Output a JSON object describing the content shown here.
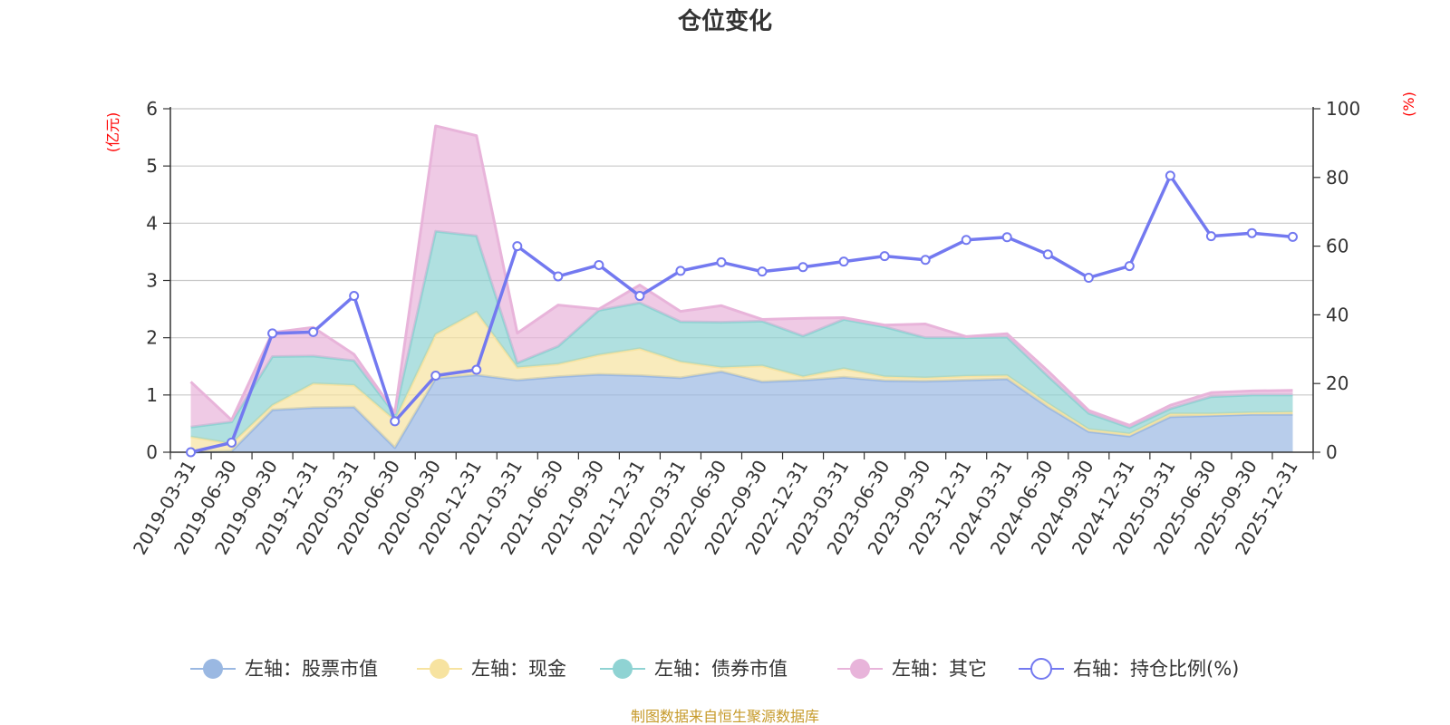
{
  "colors": {
    "stock": "#9ab8e2",
    "cash": "#f7e3a0",
    "bond": "#8fd3d3",
    "other": "#e8b4da",
    "ratio": "#7379f0",
    "unit": "#ff0000",
    "source": "#c69a2a",
    "grid": "#c8c8c8",
    "axis": "#333333"
  },
  "chart_data": {
    "type": "area",
    "title": "仓位变化",
    "left_unit": "(亿元)",
    "right_unit": "(%)",
    "source": "制图数据来自恒生聚源数据库",
    "left_ylim": [
      0,
      6
    ],
    "left_ticks": [
      0,
      1,
      2,
      3,
      4,
      5,
      6
    ],
    "right_ylim": [
      0,
      100
    ],
    "right_ticks": [
      0,
      20,
      40,
      60,
      80,
      100
    ],
    "x": [
      "2019-03-31",
      "2019-06-30",
      "2019-09-30",
      "2019-12-31",
      "2020-03-31",
      "2020-06-30",
      "2020-09-30",
      "2020-12-31",
      "2021-03-31",
      "2021-06-30",
      "2021-09-30",
      "2021-12-31",
      "2022-03-31",
      "2022-06-30",
      "2022-09-30",
      "2022-12-31",
      "2023-03-31",
      "2023-06-30",
      "2023-09-30",
      "2023-12-31",
      "2024-03-31",
      "2024-06-30",
      "2024-09-30",
      "2024-12-31",
      "2025-03-31",
      "2025-06-30",
      "2025-09-30",
      "2025-12-31"
    ],
    "series": [
      {
        "name": "左轴：股票市值",
        "axis": "left",
        "type": "area",
        "color_key": "stock",
        "values": [
          0.0,
          0.02,
          0.74,
          0.78,
          0.79,
          0.08,
          1.29,
          1.35,
          1.26,
          1.32,
          1.36,
          1.34,
          1.3,
          1.41,
          1.23,
          1.26,
          1.31,
          1.25,
          1.24,
          1.26,
          1.28,
          0.79,
          0.36,
          0.28,
          0.62,
          0.64,
          0.66,
          0.66
        ]
      },
      {
        "name": "左轴：现金",
        "axis": "left",
        "type": "area",
        "color_key": "cash",
        "values": [
          0.27,
          0.13,
          0.08,
          0.42,
          0.38,
          0.48,
          0.77,
          1.1,
          0.22,
          0.22,
          0.34,
          0.47,
          0.28,
          0.07,
          0.28,
          0.06,
          0.15,
          0.07,
          0.06,
          0.07,
          0.06,
          0.06,
          0.04,
          0.04,
          0.05,
          0.03,
          0.03,
          0.04
        ]
      },
      {
        "name": "左轴：债券市值",
        "axis": "left",
        "type": "area",
        "color_key": "bond",
        "values": [
          0.17,
          0.38,
          0.85,
          0.48,
          0.43,
          0.11,
          1.8,
          1.33,
          0.08,
          0.31,
          0.78,
          0.8,
          0.7,
          0.79,
          0.78,
          0.71,
          0.86,
          0.87,
          0.7,
          0.67,
          0.67,
          0.48,
          0.28,
          0.11,
          0.09,
          0.3,
          0.31,
          0.3
        ]
      },
      {
        "name": "左轴：其它",
        "axis": "left",
        "type": "area",
        "color_key": "other",
        "values": [
          0.79,
          0.03,
          0.42,
          0.5,
          0.11,
          0.02,
          1.84,
          1.75,
          0.52,
          0.72,
          0.02,
          0.31,
          0.18,
          0.29,
          0.03,
          0.31,
          0.03,
          0.03,
          0.24,
          0.02,
          0.06,
          0.09,
          0.05,
          0.04,
          0.06,
          0.07,
          0.07,
          0.08
        ]
      },
      {
        "name": "右轴：持仓比例(%)",
        "axis": "right",
        "type": "line",
        "color_key": "ratio",
        "values": [
          0,
          2.8,
          34.6,
          35.0,
          45.5,
          9.0,
          22.3,
          24.0,
          60.0,
          51.2,
          54.5,
          45.5,
          52.8,
          55.3,
          52.6,
          53.9,
          55.5,
          57.1,
          56.0,
          61.8,
          62.6,
          57.6,
          50.8,
          54.2,
          80.5,
          62.9,
          63.8,
          62.7
        ]
      }
    ]
  }
}
